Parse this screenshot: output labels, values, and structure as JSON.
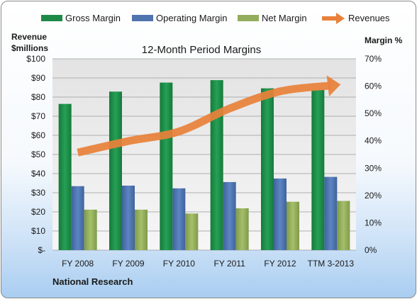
{
  "chart_data": {
    "type": "bar",
    "title": "12-Month Period Margins",
    "company": "National Research",
    "y_left_label": [
      "Revenue",
      "$millions"
    ],
    "y_right_label": "Margin %",
    "categories": [
      "FY 2008",
      "FY 2009",
      "FY 2010",
      "FY 2011",
      "FY 2012",
      "TTM 3-2013"
    ],
    "y_left_ticks": [
      "$-",
      "$10",
      "$20",
      "$30",
      "$40",
      "$50",
      "$60",
      "$70",
      "$80",
      "$90",
      "$100"
    ],
    "y_right_ticks": [
      "0%",
      "10%",
      "20%",
      "30%",
      "40%",
      "50%",
      "60%",
      "70%"
    ],
    "ylim_left": [
      0,
      100
    ],
    "ylim_right": [
      0,
      70
    ],
    "grid": true,
    "legend_position": "top",
    "series": [
      {
        "name": "Gross Margin",
        "axis": "right",
        "color": "#1e8a48",
        "values": [
          53.5,
          58.0,
          61.3,
          62.2,
          59.2,
          58.6
        ]
      },
      {
        "name": "Operating Margin",
        "axis": "right",
        "color": "#4f74ae",
        "values": [
          23.4,
          23.6,
          22.6,
          24.9,
          26.2,
          26.8
        ]
      },
      {
        "name": "Net Margin",
        "axis": "right",
        "color": "#93ad5c",
        "values": [
          14.8,
          14.8,
          13.4,
          15.3,
          17.7,
          18.0
        ]
      },
      {
        "name": "Revenues",
        "axis": "left",
        "type": "line",
        "color": "#e8813a",
        "values": [
          51,
          57,
          62,
          74,
          83,
          86
        ]
      }
    ]
  }
}
